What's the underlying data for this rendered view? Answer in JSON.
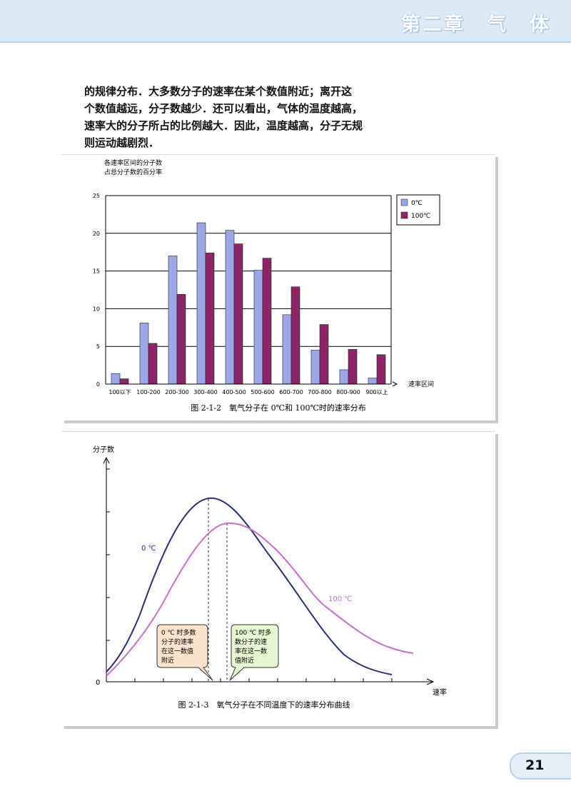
{
  "header": {
    "chapter": "第二章　气　体"
  },
  "paragraph": [
    "的规律分布．大多数分子的速率在某个数值附近；离开这",
    "个数值越远，分子数越少．还可以看出，气体的温度越高，",
    "速率大的分子所占的比例越大．因此，温度越高，分子无规",
    "则运动越剧烈．"
  ],
  "chart_data": [
    {
      "type": "bar",
      "ylabel_lines": [
        "各速率区间的分子数",
        "占总分子数的百分率"
      ],
      "xlabel": "速率区间",
      "categories": [
        "100以下",
        "100-200",
        "200-300",
        "300-400",
        "400-500",
        "500-600",
        "600-700",
        "700-800",
        "800-900",
        "900以上"
      ],
      "yticks": [
        "0",
        "5",
        "10",
        "15",
        "20",
        "25"
      ],
      "ylim": [
        0,
        25
      ],
      "grid": true,
      "legend_position": "top-right",
      "series": [
        {
          "name": "0℃",
          "color": "#9aa6e8",
          "values": [
            1.4,
            8.1,
            17.0,
            21.4,
            20.4,
            15.1,
            9.2,
            4.5,
            1.9,
            0.8
          ]
        },
        {
          "name": "100℃",
          "color": "#8c2467",
          "values": [
            0.7,
            5.4,
            11.9,
            17.4,
            18.6,
            16.7,
            12.9,
            7.9,
            4.6,
            3.9
          ]
        }
      ],
      "caption": "图 2-1-2　氧气分子在 0℃和 100℃时的速率分布"
    },
    {
      "type": "line",
      "ylabel": "分子数",
      "xlabel": "速率",
      "origin_label": "0",
      "series": [
        {
          "name": "0 ℃",
          "color": "#2a2f7e"
        },
        {
          "name": "100 ℃",
          "color": "#c86fd0"
        }
      ],
      "callouts": [
        {
          "text_lines": [
            "0 ℃ 时多数",
            "分子的速率",
            "在这一数值",
            "附近"
          ],
          "fill": "#fbe3cb"
        },
        {
          "text_lines": [
            "100 ℃ 时多",
            "数分子的速",
            "率在这一数",
            "值附近"
          ],
          "fill": "#e6f6d1"
        }
      ],
      "caption": "图 2-1-3　氧气分子在不同温度下的速率分布曲线"
    }
  ],
  "page": {
    "number": "21"
  }
}
